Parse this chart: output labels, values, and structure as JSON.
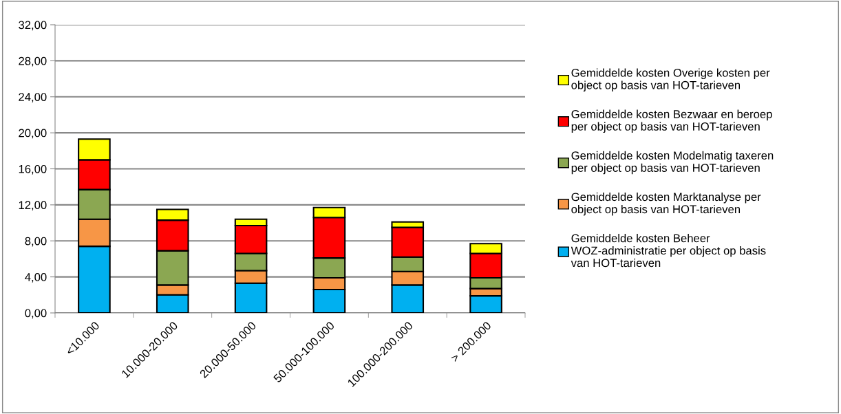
{
  "chart_data": {
    "type": "bar",
    "stacked": true,
    "categories": [
      "<10.000",
      "10.000-20.000",
      "20.000-50.000",
      "50.000-100.000",
      "100.000-200.000",
      "> 200.000"
    ],
    "series": [
      {
        "name": "Gemiddelde kosten Beheer WOZ-administratie per object op basis van HOT-tarieven",
        "color": "#00b0f0",
        "values": [
          7.4,
          2.0,
          3.3,
          2.6,
          3.1,
          1.9
        ]
      },
      {
        "name": "Gemiddelde kosten Marktanalyse per object op basis van HOT-tarieven",
        "color": "#f79646",
        "values": [
          3.0,
          1.1,
          1.4,
          1.3,
          1.5,
          0.8
        ]
      },
      {
        "name": "Gemiddelde kosten Modelmatig taxeren per object op basis van HOT-tarieven",
        "color": "#8ba752",
        "values": [
          3.3,
          3.8,
          1.9,
          2.2,
          1.6,
          1.2
        ]
      },
      {
        "name": "Gemiddelde kosten Bezwaar en beroep per object op basis van HOT-tarieven",
        "color": "#ff0000",
        "values": [
          3.3,
          3.4,
          3.1,
          4.5,
          3.3,
          2.7
        ]
      },
      {
        "name": "Gemiddelde kosten Overige kosten per object op basis van HOT-tarieven",
        "color": "#ffff00",
        "values": [
          2.3,
          1.2,
          0.7,
          1.1,
          0.6,
          1.1
        ]
      }
    ],
    "ylim": [
      0,
      32
    ],
    "yticks": [
      {
        "value": 0,
        "label": "0,00"
      },
      {
        "value": 4,
        "label": "4,00"
      },
      {
        "value": 8,
        "label": "8,00"
      },
      {
        "value": 12,
        "label": "12,00"
      },
      {
        "value": 16,
        "label": "16,00"
      },
      {
        "value": 20,
        "label": "20,00"
      },
      {
        "value": 24,
        "label": "24,00"
      },
      {
        "value": 28,
        "label": "28,00"
      },
      {
        "value": 32,
        "label": "32,00"
      }
    ],
    "grid": "y",
    "legend": "right"
  }
}
